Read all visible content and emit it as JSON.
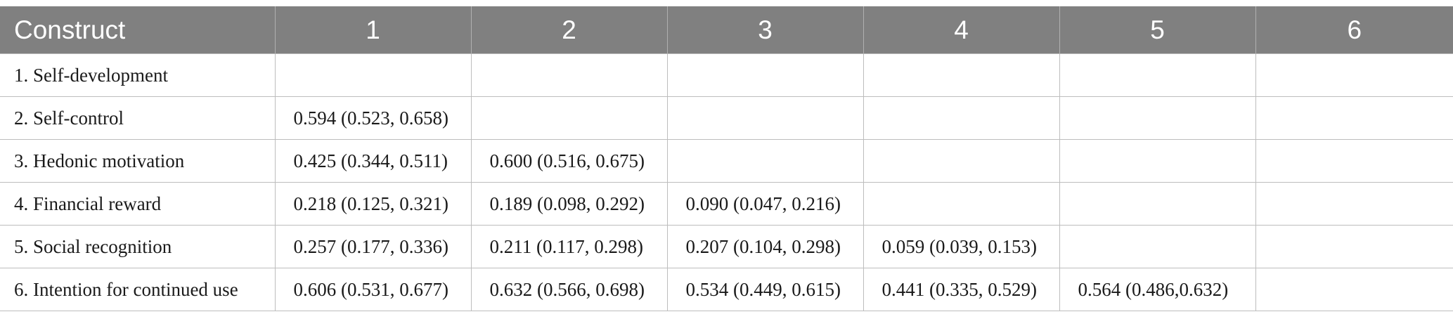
{
  "table": {
    "headers": [
      "Construct",
      "1",
      "2",
      "3",
      "4",
      "5",
      "6"
    ],
    "rows": [
      {
        "construct": "1. Self-development",
        "cells": [
          "",
          "",
          "",
          "",
          "",
          ""
        ]
      },
      {
        "construct": "2. Self-control",
        "cells": [
          "0.594 (0.523, 0.658)",
          "",
          "",
          "",
          "",
          ""
        ]
      },
      {
        "construct": "3. Hedonic motivation",
        "cells": [
          "0.425 (0.344, 0.511)",
          "0.600 (0.516, 0.675)",
          "",
          "",
          "",
          ""
        ]
      },
      {
        "construct": "4. Financial reward",
        "cells": [
          "0.218 (0.125, 0.321)",
          "0.189 (0.098, 0.292)",
          "0.090 (0.047, 0.216)",
          "",
          "",
          ""
        ]
      },
      {
        "construct": "5. Social recognition",
        "cells": [
          "0.257 (0.177, 0.336)",
          "0.211 (0.117, 0.298)",
          "0.207 (0.104, 0.298)",
          "0.059 (0.039, 0.153)",
          "",
          ""
        ]
      },
      {
        "construct": "6. Intention for continued use",
        "cells": [
          "0.606 (0.531, 0.677)",
          "0.632 (0.566, 0.698)",
          "0.534 (0.449, 0.615)",
          "0.441 (0.335, 0.529)",
          "0.564 (0.486,0.632)",
          ""
        ]
      }
    ]
  },
  "colors": {
    "header_bg": "#808080",
    "header_text": "#ffffff",
    "grid_line": "#bdbdbd"
  }
}
